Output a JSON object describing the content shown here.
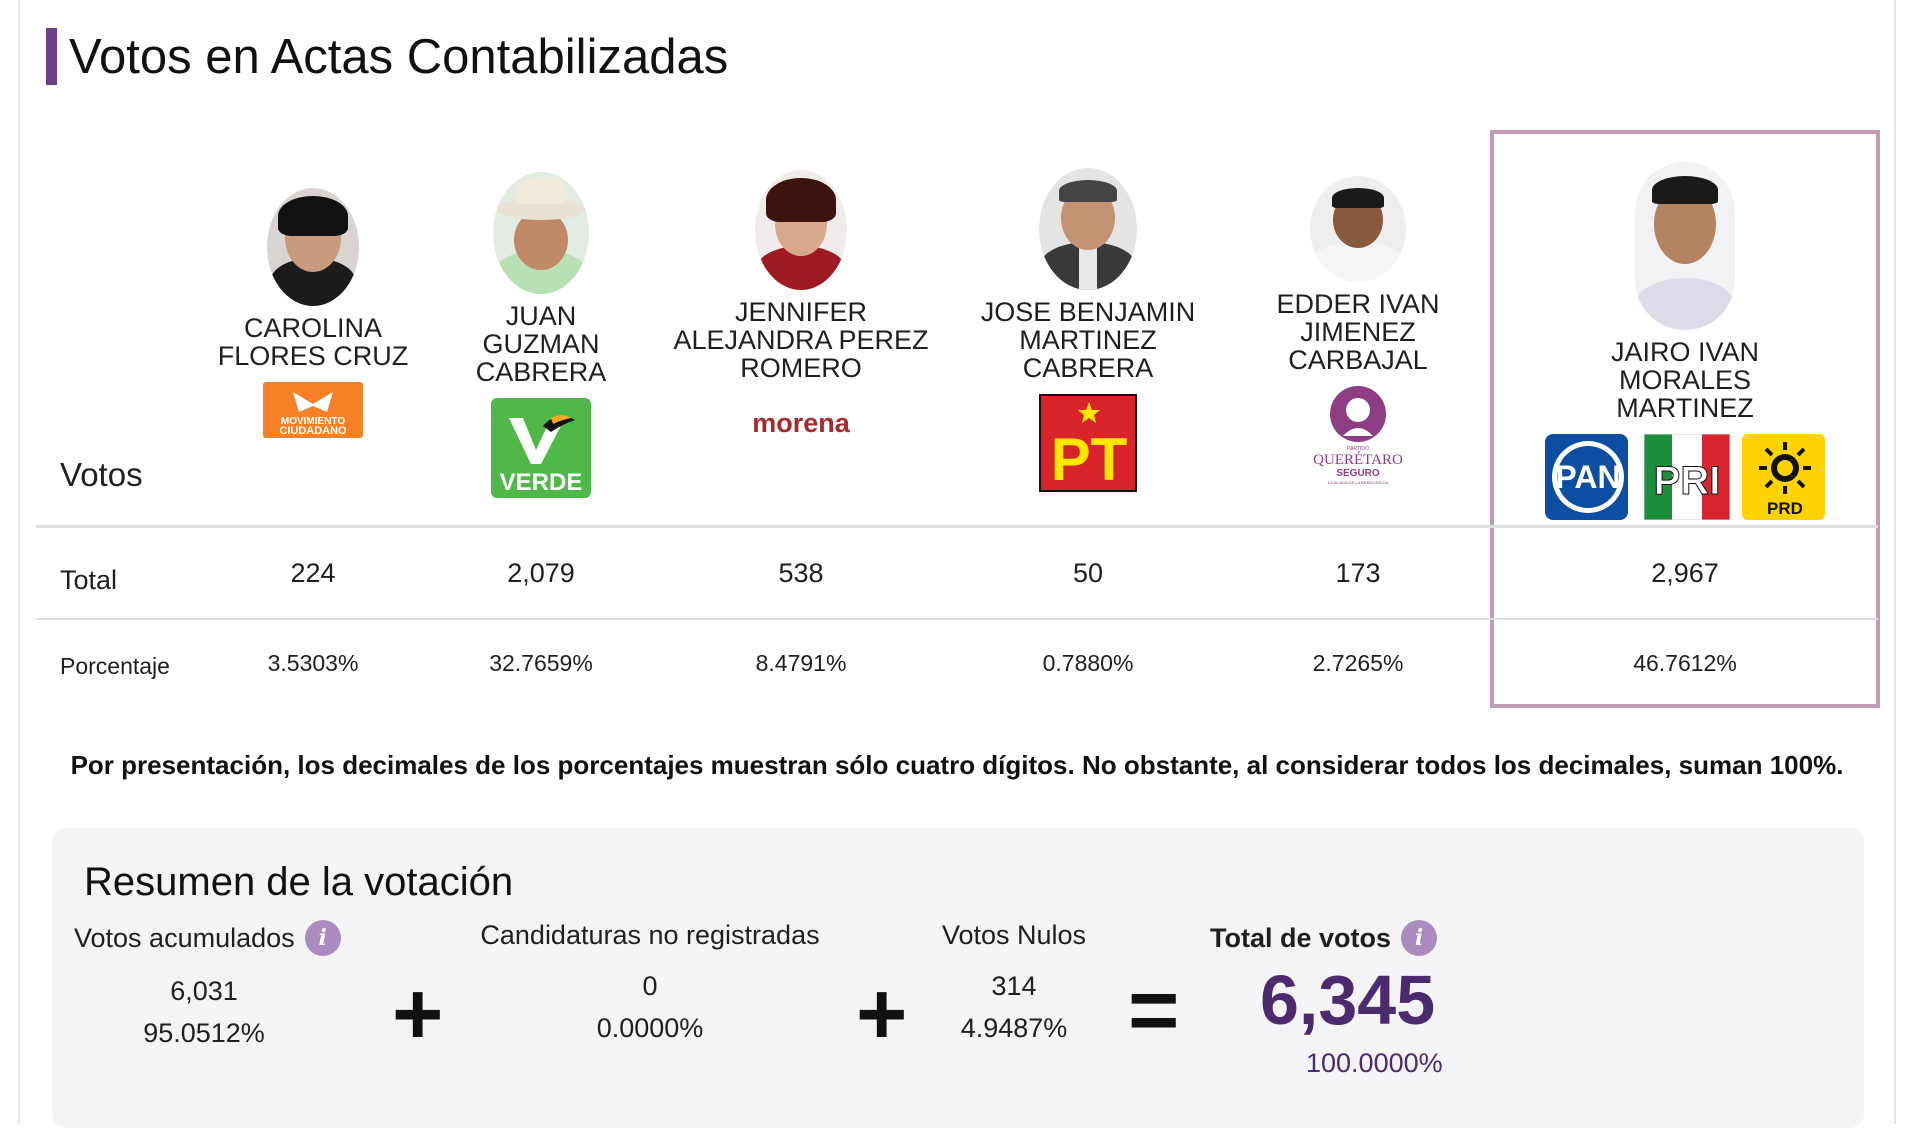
{
  "title": "Votos en Actas Contabilizadas",
  "row_labels": {
    "header": "Votos",
    "total": "Total",
    "percentage": "Porcentaje"
  },
  "candidates": [
    {
      "name": "CAROLINA\nFLORES CRUZ",
      "total": "224",
      "percentage": "3.5303%",
      "party_logos": [
        "movimiento-ciudadano-logo"
      ]
    },
    {
      "name": "JUAN\nGUZMAN\nCABRERA",
      "total": "2,079",
      "percentage": "32.7659%",
      "party_logos": [
        "verde-logo"
      ]
    },
    {
      "name": "JENNIFER\nALEJANDRA PEREZ\nROMERO",
      "total": "538",
      "percentage": "8.4791%",
      "party_logos": [
        "morena-logo"
      ]
    },
    {
      "name": "JOSE BENJAMIN\nMARTINEZ\nCABRERA",
      "total": "50",
      "percentage": "0.7880%",
      "party_logos": [
        "pt-logo"
      ]
    },
    {
      "name": "EDDER IVAN\nJIMENEZ\nCARBAJAL",
      "total": "173",
      "percentage": "2.7265%",
      "party_logos": [
        "queretaro-seguro-logo"
      ]
    },
    {
      "name": "JAIRO IVAN MORALES\nMARTINEZ",
      "total": "2,967",
      "percentage": "46.7612%",
      "party_logos": [
        "pan-logo",
        "pri-logo",
        "prd-logo"
      ],
      "highlighted": true
    }
  ],
  "logos": {
    "mc": {
      "line1": "MOVIMIENTO",
      "line2": "CIUDADANO"
    },
    "verde": "VERDE",
    "morena": "morena",
    "pt": "PT",
    "qs": {
      "line1": "PARTIDO",
      "line2": "QUERÉTARO",
      "line3": "SEGURO",
      "line4": "LA ALIADA DE LA DEMOCRACIA"
    },
    "pan": "PAN",
    "pri": "PRI",
    "prd": "PRD"
  },
  "note": "Por presentación, los decimales de los porcentajes muestran sólo cuatro dígitos. No obstante, al considerar todos los decimales, suman 100%.",
  "summary": {
    "title": "Resumen de la votación",
    "accumulated": {
      "label": "Votos acumulados",
      "votes": "6,031",
      "percentage": "95.0512%"
    },
    "unregistered": {
      "label": "Candidaturas no registradas",
      "votes": "0",
      "percentage": "0.0000%"
    },
    "null_votes": {
      "label": "Votos Nulos",
      "votes": "314",
      "percentage": "4.9487%"
    },
    "total": {
      "label": "Total de votos",
      "votes": "6,345",
      "percentage": "100.0000%"
    },
    "info_glyph": "i",
    "op_plus": "+",
    "op_equals": "="
  },
  "colors": {
    "accent": "#6a3f8c",
    "highlight_border": "#c19bb3",
    "total_purple": "#4b2a6e",
    "mc_orange": "#f58025",
    "verde_green": "#50b848",
    "morena_red": "#a52a2a",
    "pt_red": "#d8232a",
    "pt_yellow": "#ffe600",
    "qs_purple": "#8e3d83",
    "pan_blue": "#0b4ea2",
    "pri_green": "#1d8f3c",
    "pri_red": "#d7252f",
    "prd_yellow": "#ffd200"
  }
}
